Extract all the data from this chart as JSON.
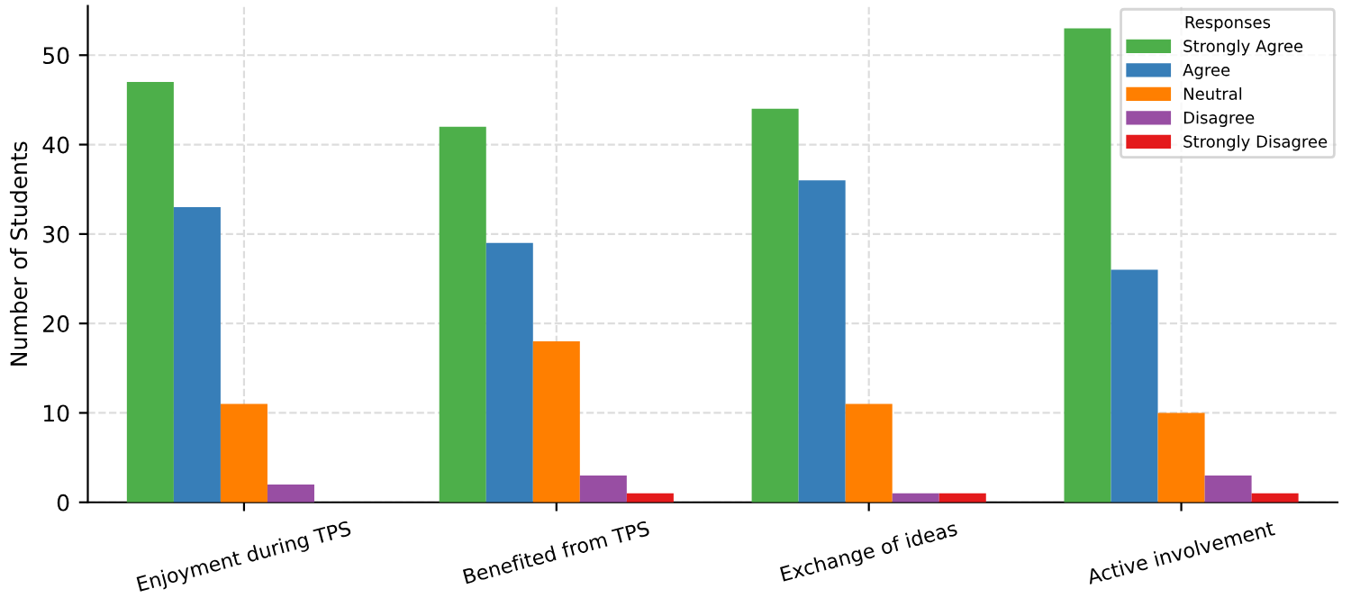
{
  "chart_data": {
    "type": "bar",
    "ylabel": "Number of Students",
    "legend_title": "Responses",
    "categories": [
      "Enjoyment during TPS",
      "Benefited from TPS",
      "Exchange of ideas",
      "Active involvement"
    ],
    "series": [
      {
        "name": "Strongly Agree",
        "color": "#4daf4a",
        "values": [
          47,
          42,
          44,
          53
        ]
      },
      {
        "name": "Agree",
        "color": "#377eb8",
        "values": [
          33,
          29,
          36,
          26
        ]
      },
      {
        "name": "Neutral",
        "color": "#ff7f00",
        "values": [
          11,
          18,
          11,
          10
        ]
      },
      {
        "name": "Disagree",
        "color": "#984ea3",
        "values": [
          2,
          3,
          1,
          3
        ]
      },
      {
        "name": "Strongly Disagree",
        "color": "#e41a1c",
        "values": [
          0,
          1,
          1,
          1
        ]
      }
    ],
    "ylim": [
      0,
      55.5
    ],
    "yticks": [
      0,
      10,
      20,
      30,
      40,
      50
    ],
    "grid": true,
    "legend": "top right"
  }
}
